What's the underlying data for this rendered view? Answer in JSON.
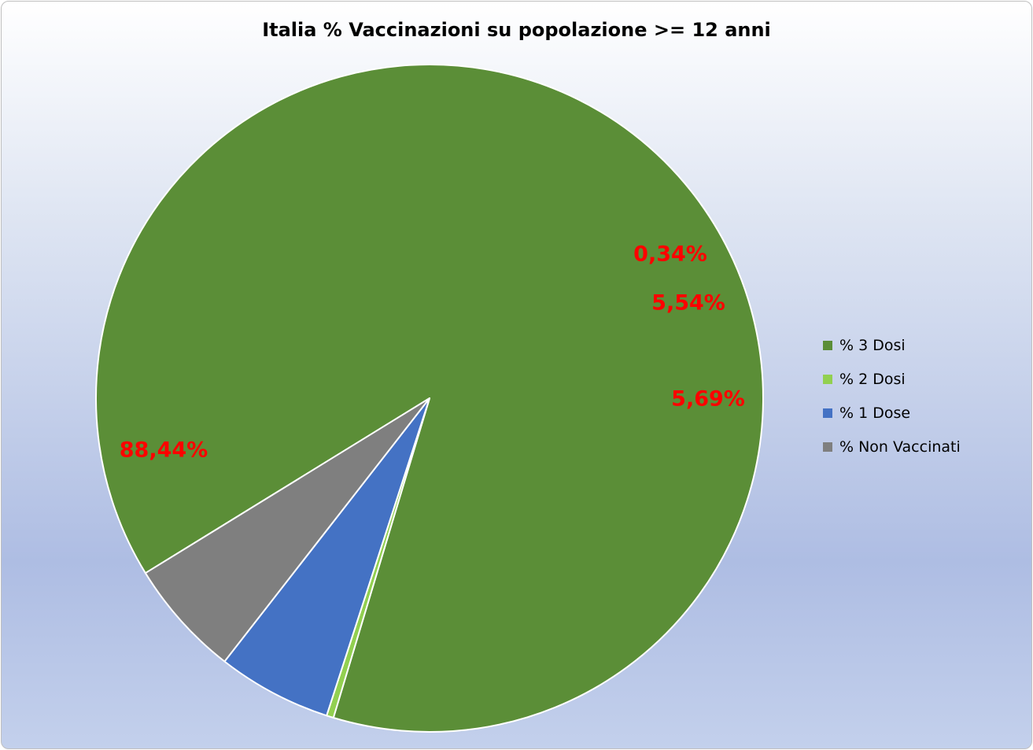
{
  "chart_data": {
    "type": "pie",
    "title": "Italia % Vaccinazioni su popolazione >= 12 anni",
    "slices": [
      {
        "name": "% 3 Dosi",
        "value": 88.44,
        "label": "88,44%",
        "color": "#5b8e37"
      },
      {
        "name": "% 2 Dosi",
        "value": 0.34,
        "label": "0,34%",
        "color": "#92d050"
      },
      {
        "name": "% 1 Dose",
        "value": 5.54,
        "label": "5,54%",
        "color": "#4472c4"
      },
      {
        "name": "% Non Vaccinati",
        "value": 5.69,
        "label": "5,69%",
        "color": "#7f7f7f"
      }
    ],
    "data_label_color": "#ff0000",
    "legend_position": "right"
  }
}
